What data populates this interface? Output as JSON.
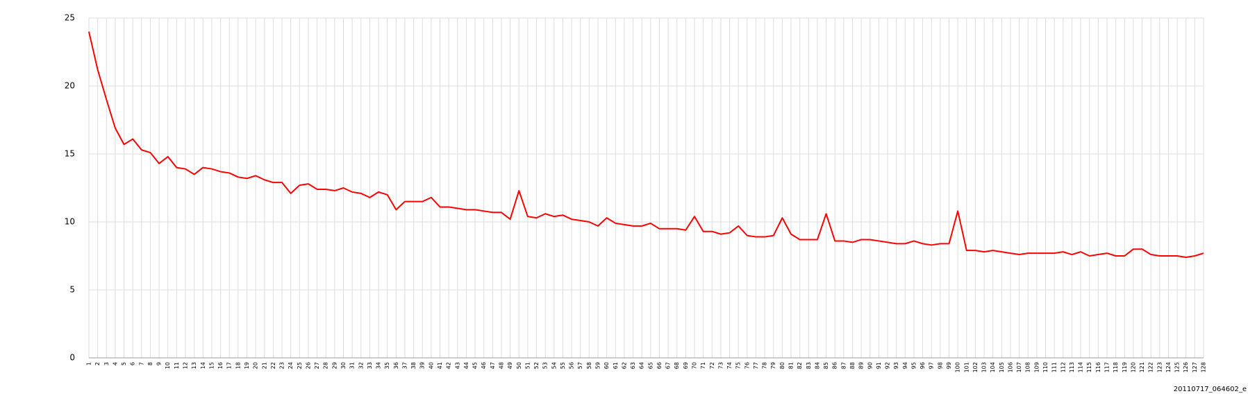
{
  "chart_data": {
    "type": "line",
    "caption": "20110717_064602_e",
    "categories": [
      "1",
      "2",
      "3",
      "4",
      "5",
      "6",
      "7",
      "8",
      "9",
      "10",
      "11",
      "12",
      "13",
      "14",
      "15",
      "16",
      "17",
      "18",
      "19",
      "20",
      "21",
      "22",
      "23",
      "24",
      "25",
      "26",
      "27",
      "28",
      "29",
      "30",
      "31",
      "32",
      "33",
      "34",
      "35",
      "36",
      "37",
      "38",
      "39",
      "40",
      "41",
      "42",
      "43",
      "44",
      "45",
      "46",
      "47",
      "48",
      "49",
      "50",
      "51",
      "52",
      "53",
      "54",
      "55",
      "56",
      "57",
      "58",
      "59",
      "60",
      "61",
      "62",
      "63",
      "64",
      "65",
      "66",
      "67",
      "68",
      "69",
      "70",
      "71",
      "72",
      "73",
      "74",
      "75",
      "76",
      "77",
      "78",
      "79",
      "80",
      "81",
      "82",
      "83",
      "84",
      "85",
      "86",
      "87",
      "88",
      "89",
      "90",
      "91",
      "92",
      "93",
      "94",
      "95",
      "96",
      "97",
      "98",
      "99",
      "100",
      "101",
      "102",
      "103",
      "104",
      "105",
      "106",
      "107",
      "108",
      "109",
      "110",
      "111",
      "112",
      "113",
      "114",
      "115",
      "116",
      "117",
      "118",
      "119",
      "120",
      "121",
      "122",
      "123",
      "124",
      "125",
      "126",
      "127",
      "128"
    ],
    "values": [
      24,
      21.2,
      19,
      16.9,
      15.7,
      16.1,
      15.3,
      15.1,
      14.3,
      14.8,
      14,
      13.9,
      13.5,
      14,
      13.9,
      13.7,
      13.6,
      13.3,
      13.2,
      13.4,
      13.1,
      12.9,
      12.9,
      12.1,
      12.7,
      12.8,
      12.4,
      12.4,
      12.3,
      12.5,
      12.2,
      12.1,
      11.8,
      12.2,
      12,
      10.9,
      11.5,
      11.5,
      11.5,
      11.8,
      11.1,
      11.1,
      11,
      10.9,
      10.9,
      10.8,
      10.7,
      10.7,
      10.2,
      12.3,
      10.4,
      10.3,
      10.6,
      10.4,
      10.5,
      10.2,
      10.1,
      10,
      9.7,
      10.3,
      9.9,
      9.8,
      9.7,
      9.7,
      9.9,
      9.5,
      9.5,
      9.5,
      9.4,
      10.4,
      9.3,
      9.3,
      9.1,
      9.2,
      9.7,
      9,
      8.9,
      8.9,
      9,
      10.3,
      9.1,
      8.7,
      8.7,
      8.7,
      10.6,
      8.6,
      8.6,
      8.5,
      8.7,
      8.7,
      8.6,
      8.5,
      8.4,
      8.4,
      8.6,
      8.4,
      8.3,
      8.4,
      8.4,
      10.8,
      7.9,
      7.9,
      7.8,
      7.9,
      7.8,
      7.7,
      7.6,
      7.7,
      7.7,
      7.7,
      7.7,
      7.8,
      7.6,
      7.8,
      7.5,
      7.6,
      7.7,
      7.5,
      7.5,
      8,
      8,
      7.6,
      7.5,
      7.5,
      7.5,
      7.4,
      7.5,
      7.7
    ],
    "color": "#ff0000",
    "ylim": [
      0,
      25
    ],
    "yticks": [
      0,
      5,
      10,
      15,
      20,
      25
    ],
    "grid": true
  }
}
